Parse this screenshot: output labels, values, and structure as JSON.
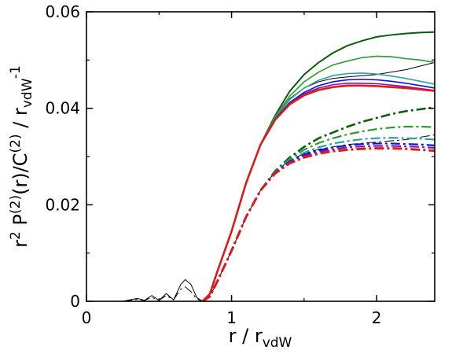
{
  "chart_data": {
    "type": "line",
    "title": "",
    "xlabel": {
      "main": "r / r",
      "sub": "vdW"
    },
    "ylabel": {
      "p1": "r",
      "sup1": "2",
      "p2": " P",
      "sup2": "(2)",
      "p3": "(r)/C",
      "sup3": "(2)",
      "p4": " / r",
      "sub4": "vdW",
      "sup4": "-1"
    },
    "xlim": [
      0,
      2.4
    ],
    "ylim": [
      0,
      0.06
    ],
    "xticks": [
      0,
      1,
      2
    ],
    "xtick_labels": [
      "0",
      "1",
      "2"
    ],
    "yticks": [
      0,
      0.02,
      0.04,
      0.06
    ],
    "ytick_labels": [
      "0",
      "0.02",
      "0.04",
      "0.06"
    ],
    "grid": false,
    "series": [
      {
        "color": "#000000",
        "style": "solid",
        "width": 1.0,
        "x": [
          0,
          0.25,
          0.3,
          0.35,
          0.4,
          0.45,
          0.5,
          0.55,
          0.6,
          0.65,
          0.68,
          0.72,
          0.76,
          0.8,
          0.85,
          0.9,
          1.0,
          1.1,
          1.2,
          1.3,
          1.4,
          1.5,
          1.6,
          1.7,
          1.8,
          2.0,
          2.2,
          2.4
        ],
        "y": [
          0,
          0,
          0.0003,
          0.0006,
          0.0002,
          0.0012,
          0.0002,
          0.0016,
          0.0003,
          0.0035,
          0.0045,
          0.0035,
          0.0008,
          0.0,
          0.0015,
          0.006,
          0.0145,
          0.0245,
          0.0325,
          0.038,
          0.042,
          0.0442,
          0.0455,
          0.0462,
          0.0465,
          0.047,
          0.048,
          0.0495
        ]
      },
      {
        "color": "#000000",
        "style": "dashdot",
        "width": 1.0,
        "x": [
          0,
          0.25,
          0.35,
          0.4,
          0.45,
          0.5,
          0.55,
          0.6,
          0.65,
          0.68,
          0.72,
          0.76,
          0.8,
          0.85,
          0.9,
          1.0,
          1.1,
          1.2,
          1.3,
          1.4,
          1.5,
          1.6,
          1.7,
          1.8,
          2.0,
          2.2,
          2.4
        ],
        "y": [
          0,
          0,
          0.0004,
          0.0002,
          0.0008,
          0.0002,
          0.0012,
          0.0003,
          0.0025,
          0.003,
          0.002,
          0.0005,
          0.0,
          0.001,
          0.004,
          0.0105,
          0.0175,
          0.023,
          0.0268,
          0.0292,
          0.0306,
          0.0315,
          0.032,
          0.0325,
          0.033,
          0.0335,
          0.0345
        ]
      },
      {
        "color": "#0a5e0a",
        "style": "solid",
        "width": 2.0,
        "x": [
          0.8,
          0.85,
          0.9,
          1.0,
          1.1,
          1.2,
          1.3,
          1.4,
          1.5,
          1.6,
          1.7,
          1.8,
          1.9,
          2.0,
          2.1,
          2.2,
          2.3,
          2.4
        ],
        "y": [
          0.0,
          0.0015,
          0.006,
          0.0145,
          0.0245,
          0.0325,
          0.0385,
          0.0435,
          0.047,
          0.0495,
          0.0515,
          0.053,
          0.054,
          0.0548,
          0.0552,
          0.0555,
          0.0557,
          0.0558
        ]
      },
      {
        "color": "#2e9a2e",
        "style": "solid",
        "width": 1.6,
        "x": [
          0.8,
          0.85,
          0.9,
          1.0,
          1.1,
          1.2,
          1.3,
          1.4,
          1.5,
          1.6,
          1.7,
          1.8,
          1.9,
          2.0,
          2.1,
          2.2,
          2.3,
          2.4
        ],
        "y": [
          0.0,
          0.0015,
          0.006,
          0.0145,
          0.0245,
          0.0325,
          0.0383,
          0.0425,
          0.0455,
          0.0475,
          0.049,
          0.0498,
          0.0505,
          0.0508,
          0.0507,
          0.0503,
          0.05,
          0.0495
        ]
      },
      {
        "color": "#2aa0a0",
        "style": "solid",
        "width": 1.6,
        "x": [
          0.8,
          0.85,
          0.9,
          1.0,
          1.1,
          1.2,
          1.3,
          1.4,
          1.5,
          1.6,
          1.7,
          1.8,
          1.9,
          2.0,
          2.1,
          2.2,
          2.3,
          2.4
        ],
        "y": [
          0.0,
          0.0015,
          0.006,
          0.0145,
          0.0245,
          0.0325,
          0.038,
          0.0418,
          0.0442,
          0.0458,
          0.0468,
          0.0472,
          0.0473,
          0.0471,
          0.0467,
          0.0462,
          0.0456,
          0.045
        ]
      },
      {
        "color": "#1010dd",
        "style": "solid",
        "width": 1.6,
        "x": [
          0.8,
          0.85,
          0.9,
          1.0,
          1.1,
          1.2,
          1.3,
          1.4,
          1.5,
          1.6,
          1.7,
          1.8,
          1.9,
          2.0,
          2.1,
          2.2,
          2.3,
          2.4
        ],
        "y": [
          0.0,
          0.0015,
          0.006,
          0.0145,
          0.0245,
          0.0325,
          0.0378,
          0.0412,
          0.0433,
          0.0447,
          0.0455,
          0.0459,
          0.046,
          0.0459,
          0.0456,
          0.0452,
          0.0447,
          0.0442
        ]
      },
      {
        "color": "#7a1aa8",
        "style": "solid",
        "width": 1.6,
        "x": [
          0.8,
          0.85,
          0.9,
          1.0,
          1.1,
          1.2,
          1.3,
          1.4,
          1.5,
          1.6,
          1.7,
          1.8,
          1.9,
          2.0,
          2.1,
          2.2,
          2.3,
          2.4
        ],
        "y": [
          0.0,
          0.0015,
          0.006,
          0.0145,
          0.0245,
          0.0325,
          0.0377,
          0.041,
          0.043,
          0.0442,
          0.0449,
          0.0452,
          0.0452,
          0.0451,
          0.0448,
          0.0445,
          0.0441,
          0.0437
        ]
      },
      {
        "color": "#dd1a1a",
        "style": "solid",
        "width": 2.6,
        "x": [
          0.8,
          0.85,
          0.9,
          1.0,
          1.1,
          1.2,
          1.3,
          1.4,
          1.5,
          1.6,
          1.7,
          1.8,
          1.9,
          2.0,
          2.1,
          2.2,
          2.3,
          2.4
        ],
        "y": [
          0.0,
          0.0015,
          0.006,
          0.0145,
          0.0245,
          0.0325,
          0.0376,
          0.0408,
          0.0427,
          0.0438,
          0.0444,
          0.0447,
          0.0447,
          0.0446,
          0.0444,
          0.0442,
          0.0439,
          0.0436
        ]
      },
      {
        "color": "#0a5e0a",
        "style": "dashdot",
        "width": 2.6,
        "x": [
          0.8,
          0.85,
          0.9,
          1.0,
          1.1,
          1.2,
          1.3,
          1.4,
          1.5,
          1.6,
          1.7,
          1.8,
          1.9,
          2.0,
          2.1,
          2.2,
          2.3,
          2.4
        ],
        "y": [
          0.0,
          0.001,
          0.004,
          0.0105,
          0.0175,
          0.023,
          0.027,
          0.0298,
          0.032,
          0.0338,
          0.035,
          0.0362,
          0.0372,
          0.038,
          0.0388,
          0.0394,
          0.0398,
          0.0402
        ]
      },
      {
        "color": "#2e9a2e",
        "style": "dashdot",
        "width": 2.2,
        "x": [
          0.8,
          0.85,
          0.9,
          1.0,
          1.1,
          1.2,
          1.3,
          1.4,
          1.5,
          1.6,
          1.7,
          1.8,
          1.9,
          2.0,
          2.1,
          2.2,
          2.3,
          2.4
        ],
        "y": [
          0.0,
          0.001,
          0.004,
          0.0105,
          0.0175,
          0.023,
          0.0269,
          0.0295,
          0.0314,
          0.0328,
          0.0338,
          0.0346,
          0.0352,
          0.0357,
          0.036,
          0.0362,
          0.0362,
          0.0361
        ]
      },
      {
        "color": "#2aa0a0",
        "style": "dashdot",
        "width": 2.2,
        "x": [
          0.8,
          0.85,
          0.9,
          1.0,
          1.1,
          1.2,
          1.3,
          1.4,
          1.5,
          1.6,
          1.7,
          1.8,
          1.9,
          2.0,
          2.1,
          2.2,
          2.3,
          2.4
        ],
        "y": [
          0.0,
          0.001,
          0.004,
          0.0105,
          0.0175,
          0.023,
          0.0268,
          0.0292,
          0.0308,
          0.0319,
          0.0327,
          0.0332,
          0.0336,
          0.0338,
          0.0339,
          0.0338,
          0.0337,
          0.0335
        ]
      },
      {
        "color": "#1010dd",
        "style": "dashdot",
        "width": 2.2,
        "x": [
          0.8,
          0.85,
          0.9,
          1.0,
          1.1,
          1.2,
          1.3,
          1.4,
          1.5,
          1.6,
          1.7,
          1.8,
          1.9,
          2.0,
          2.1,
          2.2,
          2.3,
          2.4
        ],
        "y": [
          0.0,
          0.001,
          0.004,
          0.0105,
          0.0175,
          0.023,
          0.0267,
          0.029,
          0.0304,
          0.0313,
          0.0319,
          0.0323,
          0.0326,
          0.0327,
          0.0327,
          0.0326,
          0.0325,
          0.0323
        ]
      },
      {
        "color": "#7a1aa8",
        "style": "dashdot",
        "width": 2.2,
        "x": [
          0.8,
          0.85,
          0.9,
          1.0,
          1.1,
          1.2,
          1.3,
          1.4,
          1.5,
          1.6,
          1.7,
          1.8,
          1.9,
          2.0,
          2.1,
          2.2,
          2.3,
          2.4
        ],
        "y": [
          0.0,
          0.001,
          0.004,
          0.0105,
          0.0175,
          0.023,
          0.0266,
          0.0288,
          0.0301,
          0.031,
          0.0315,
          0.0319,
          0.0321,
          0.0322,
          0.0322,
          0.0321,
          0.032,
          0.0318
        ]
      },
      {
        "color": "#dd1a1a",
        "style": "dashdot",
        "width": 3.0,
        "x": [
          0.8,
          0.85,
          0.9,
          1.0,
          1.1,
          1.2,
          1.3,
          1.4,
          1.5,
          1.6,
          1.7,
          1.8,
          1.9,
          2.0,
          2.1,
          2.2,
          2.3,
          2.4
        ],
        "y": [
          0.0,
          0.001,
          0.004,
          0.0105,
          0.0175,
          0.023,
          0.0265,
          0.0286,
          0.0298,
          0.0306,
          0.0311,
          0.0314,
          0.0316,
          0.0317,
          0.0317,
          0.0316,
          0.0314,
          0.0312
        ]
      }
    ]
  }
}
